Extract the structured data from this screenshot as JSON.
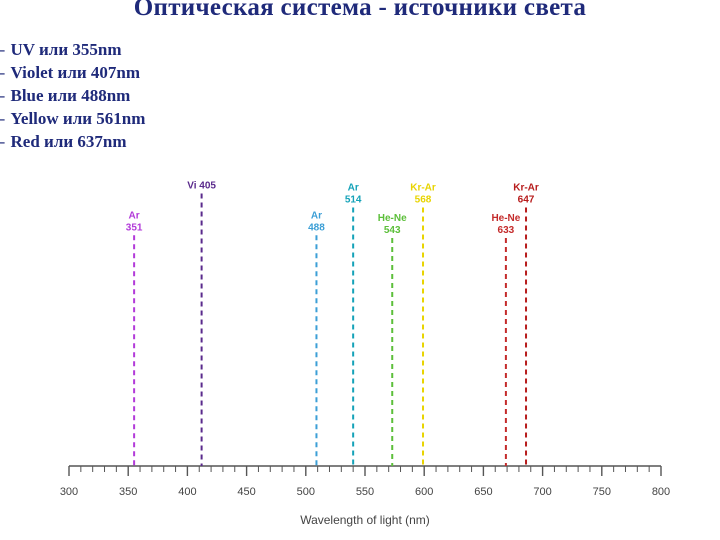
{
  "title": "Оптическая система - источники света",
  "bullets": [
    "UV или 355nm",
    "Violet или 407nm",
    "Blue или 488nm",
    "Yellow или 561nm",
    "Red или 637nm"
  ],
  "chart_data": {
    "type": "line",
    "xlabel": "Wavelength of light (nm)",
    "xlim": [
      300,
      800
    ],
    "xticks": [
      300,
      350,
      400,
      450,
      500,
      550,
      600,
      650,
      700,
      750,
      800
    ],
    "lines": [
      {
        "x": 355,
        "name": "Ar",
        "value": "351",
        "color": "#b23ad9",
        "height": 0.83
      },
      {
        "x": 412,
        "name": "Vi 405",
        "value": "",
        "color": "#5a2a8c",
        "height": 0.98
      },
      {
        "x": 509,
        "name": "Ar",
        "value": "488",
        "color": "#3c9fd6",
        "height": 0.83
      },
      {
        "x": 540,
        "name": "Ar",
        "value": "514",
        "color": "#14a2b8",
        "height": 0.93
      },
      {
        "x": 573,
        "name": "He-Ne",
        "value": "543",
        "color": "#5cbf3a",
        "height": 0.82
      },
      {
        "x": 599,
        "name": "Kr-Ar",
        "value": "568",
        "color": "#e8d400",
        "height": 0.93
      },
      {
        "x": 669,
        "name": "He-Ne",
        "value": "633",
        "color": "#c42b2b",
        "height": 0.82
      },
      {
        "x": 686,
        "name": "Kr-Ar",
        "value": "647",
        "color": "#b71c1c",
        "height": 0.93
      }
    ]
  }
}
